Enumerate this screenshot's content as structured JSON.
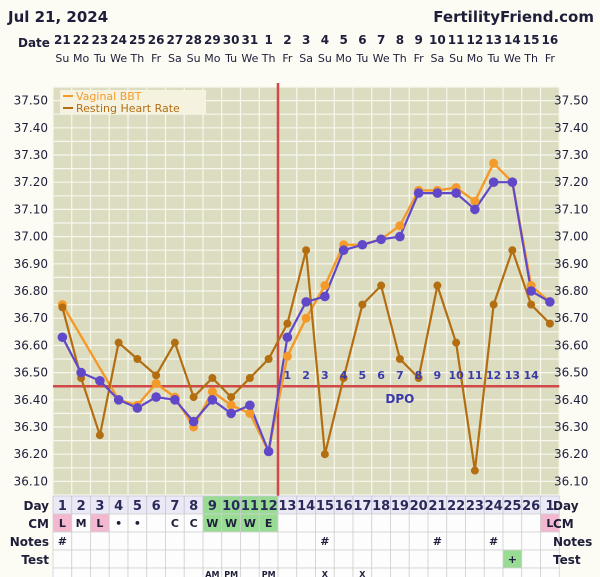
{
  "header": {
    "date_text": "Jul 21, 2024",
    "site": "FertilityFriend.com"
  },
  "row_labels": {
    "date": "Date",
    "day": "Day",
    "cm": "CM",
    "notes": "Notes",
    "test": "Test"
  },
  "colors": {
    "background": "#fcfbf4",
    "grid_bg": "#dcdcc0",
    "grid_line": "#f7f7ee",
    "vaginal_bbt": "#f49a2a",
    "heart_rate": "#b36e12",
    "overlay_line": "#6048c8",
    "coverline": "#d04848",
    "dpo_text": "#3a3aa8",
    "fertile_fill": "#98dc94",
    "cm_pink": "#f3b8cf"
  },
  "chart_data": {
    "type": "line",
    "dates": [
      "21",
      "22",
      "23",
      "24",
      "25",
      "26",
      "27",
      "28",
      "29",
      "30",
      "31",
      "1",
      "2",
      "3",
      "4",
      "5",
      "6",
      "7",
      "8",
      "9",
      "10",
      "11",
      "12",
      "13",
      "14",
      "15",
      "16"
    ],
    "weekdays": [
      "Su",
      "Mo",
      "Tu",
      "We",
      "Th",
      "Fr",
      "Sa",
      "Su",
      "Mo",
      "Tu",
      "We",
      "Th",
      "Fr",
      "Sa",
      "Su",
      "Mo",
      "Tu",
      "We",
      "Th",
      "Fr",
      "Sa",
      "Su",
      "Mo",
      "Tu",
      "We",
      "Th",
      "Fr"
    ],
    "cycle_days": [
      "1",
      "2",
      "3",
      "4",
      "5",
      "6",
      "7",
      "8",
      "9",
      "10",
      "11",
      "12",
      "13",
      "14",
      "15",
      "16",
      "17",
      "18",
      "19",
      "20",
      "21",
      "22",
      "23",
      "24",
      "25",
      "26",
      "1"
    ],
    "cm": [
      "L",
      "M",
      "L",
      "•",
      "•",
      "",
      "C",
      "C",
      "W",
      "W",
      "W",
      "E",
      "",
      "",
      "",
      "",
      "",
      "",
      "",
      "",
      "",
      "",
      "",
      "",
      "",
      "",
      "L"
    ],
    "notes": [
      "#",
      "",
      "",
      "",
      "",
      "",
      "",
      "",
      "",
      "",
      "",
      "",
      "",
      "",
      "#",
      "",
      "",
      "",
      "",
      "",
      "#",
      "",
      "",
      "#",
      "",
      "",
      ""
    ],
    "test": [
      "",
      "",
      "",
      "",
      "",
      "",
      "",
      "",
      "",
      "",
      "",
      "",
      "",
      "",
      "",
      "",
      "",
      "",
      "",
      "",
      "",
      "",
      "",
      "",
      "+",
      "",
      ""
    ],
    "bottom_row": [
      "",
      "",
      "",
      "",
      "",
      "",
      "",
      "",
      "AM",
      "PM",
      "",
      "PM",
      "",
      "",
      "X",
      "",
      "X",
      "",
      "",
      "",
      "",
      "",
      "",
      "",
      "",
      "",
      ""
    ],
    "y_ticks": [
      "37.50",
      "37.40",
      "37.30",
      "37.20",
      "37.10",
      "37.00",
      "36.90",
      "36.80",
      "36.70",
      "36.60",
      "36.50",
      "36.40",
      "36.30",
      "36.20",
      "36.10"
    ],
    "ylim": [
      36.05,
      37.55
    ],
    "legend": [
      "Vaginal BBT",
      "Resting Heart Rate"
    ],
    "series": [
      {
        "name": "Vaginal BBT",
        "values": [
          36.75,
          null,
          null,
          36.4,
          36.38,
          36.46,
          36.41,
          36.3,
          36.43,
          36.38,
          36.35,
          36.21,
          36.56,
          36.7,
          36.82,
          36.97,
          36.97,
          36.99,
          37.04,
          37.17,
          37.17,
          37.18,
          37.13,
          37.27,
          37.2,
          36.82,
          36.76
        ]
      },
      {
        "name": "Resting Heart Rate",
        "values": [
          36.74,
          36.48,
          36.27,
          36.61,
          36.55,
          36.49,
          36.61,
          36.41,
          36.48,
          36.41,
          36.48,
          36.55,
          36.68,
          36.95,
          36.2,
          36.48,
          36.75,
          36.82,
          36.55,
          36.48,
          36.82,
          36.61,
          36.14,
          36.75,
          36.95,
          36.75,
          36.68
        ]
      },
      {
        "name": "",
        "values": [
          36.63,
          36.5,
          36.47,
          36.4,
          36.37,
          36.41,
          36.4,
          36.32,
          36.4,
          36.35,
          36.38,
          36.21,
          36.63,
          36.76,
          36.78,
          36.95,
          36.97,
          36.99,
          37.0,
          37.16,
          37.16,
          37.16,
          37.1,
          37.2,
          37.2,
          36.8,
          36.76
        ]
      }
    ],
    "coverline": 36.45,
    "ovulation_index": 11,
    "dpo_labels": [
      "1",
      "2",
      "3",
      "4",
      "5",
      "6",
      "7",
      "8",
      "9",
      "10",
      "11",
      "12",
      "13",
      "14"
    ],
    "dpo_text": "DPO",
    "fertile_days": [
      8,
      9,
      10,
      11
    ],
    "pink_cm_days": [
      0,
      2,
      26
    ]
  }
}
